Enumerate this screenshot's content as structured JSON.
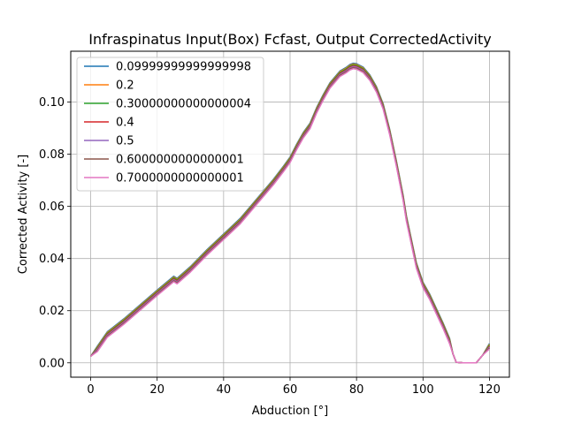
{
  "chart_data": {
    "type": "line",
    "title": "Infraspinatus Input(Box) Fcfast, Output CorrectedActivity",
    "xlabel": "Abduction [°]",
    "ylabel": "Corrected Activity [-]",
    "xlim": [
      -6,
      126
    ],
    "ylim": [
      -0.0055,
      0.1195
    ],
    "xticks": [
      0,
      20,
      40,
      60,
      80,
      100,
      120
    ],
    "yticks": [
      0.0,
      0.02,
      0.04,
      0.06,
      0.08,
      0.1
    ],
    "ytick_labels": [
      "0.00",
      "0.02",
      "0.04",
      "0.06",
      "0.08",
      "0.10"
    ],
    "grid": true,
    "legend_location": "top-left",
    "x": [
      0,
      2,
      5,
      10,
      15,
      20,
      25,
      26,
      30,
      35,
      40,
      45,
      50,
      55,
      58,
      60,
      62,
      64,
      66,
      68,
      70,
      72,
      74,
      75,
      77,
      78,
      79,
      80,
      82,
      84,
      86,
      88,
      90,
      92,
      94,
      95,
      97,
      98,
      100,
      102,
      104,
      106,
      108,
      109,
      110,
      112,
      114,
      116,
      117,
      118,
      120
    ],
    "base": [
      0.0025,
      0.005,
      0.0105,
      0.0155,
      0.021,
      0.0265,
      0.0318,
      0.031,
      0.0355,
      0.042,
      0.048,
      0.054,
      0.0615,
      0.069,
      0.074,
      0.0775,
      0.0825,
      0.087,
      0.0905,
      0.0965,
      0.1015,
      0.106,
      0.109,
      0.1105,
      0.112,
      0.113,
      0.1135,
      0.1133,
      0.112,
      0.109,
      0.1045,
      0.098,
      0.088,
      0.076,
      0.063,
      0.055,
      0.043,
      0.037,
      0.0295,
      0.025,
      0.0195,
      0.014,
      0.008,
      0.0035,
      0.0002,
      0.0,
      0.0,
      0.0,
      0.0015,
      0.003,
      0.006
    ],
    "series": [
      {
        "name": "0.09999999999999998",
        "color": "#1f77b4",
        "offset": 0.0014
      },
      {
        "name": "0.2",
        "color": "#ff7f0e",
        "offset": 0.0011
      },
      {
        "name": "0.30000000000000004",
        "color": "#2ca02c",
        "offset": 0.0008
      },
      {
        "name": "0.4",
        "color": "#d62728",
        "offset": 0.0004
      },
      {
        "name": "0.5",
        "color": "#9467bd",
        "offset": 0.0001
      },
      {
        "name": "0.6000000000000001",
        "color": "#8c564b",
        "offset": -0.0003
      },
      {
        "name": "0.7000000000000001",
        "color": "#e377c2",
        "offset": -0.0007
      }
    ]
  }
}
